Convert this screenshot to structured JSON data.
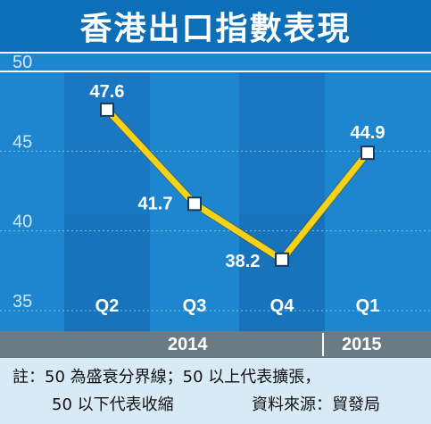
{
  "title": "香港出口指數表現",
  "years": [
    {
      "label": "2014"
    },
    {
      "label": "2015"
    }
  ],
  "note": {
    "line1": "註：50 為盛衰分界線；50 以上代表擴張，",
    "line2": "50 以下代表收縮",
    "source": "資料來源：貿發局"
  },
  "colors": {
    "background": "#1e86cf",
    "title_bar": "#0d6fb8",
    "column_band": "#1a78c2",
    "line": "#f5d11a",
    "year_bar": "#6a7b86",
    "note_bg": "#d8eaf5"
  },
  "chart_data": {
    "type": "line",
    "title": "香港出口指數表現",
    "categories": [
      "Q2",
      "Q3",
      "Q4",
      "Q1"
    ],
    "values": [
      47.6,
      41.7,
      38.2,
      44.9
    ],
    "value_labels": [
      "47.6",
      "41.7",
      "38.2",
      "44.9"
    ],
    "y_ticks": [
      "50",
      "45",
      "40",
      "35"
    ],
    "ylim": [
      35,
      50
    ],
    "grid": true,
    "legend": "none",
    "marker": "square"
  }
}
